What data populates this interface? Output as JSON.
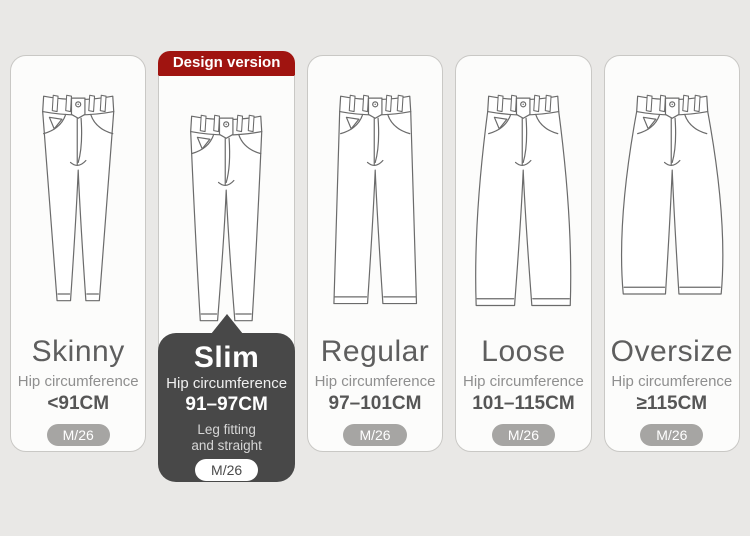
{
  "page": {
    "background": "#e9e8e6"
  },
  "colors": {
    "banner_red": "#a01410",
    "panel_gray": "#484848",
    "card_background": "#fcfcfb",
    "card_border": "#c9c8c5",
    "badge_gray": "#a6a5a3",
    "title_gray": "#5e5e5e"
  },
  "columns": [
    {
      "id": "skinny",
      "name": "Skinny",
      "hip_label": "Hip circumference",
      "hip_value": "<91CM",
      "size": "M/26"
    },
    {
      "id": "slim",
      "name": "Slim",
      "banner": "Design version",
      "hip_label": "Hip circumference",
      "hip_value": "91–97CM",
      "extra_line1": "Leg fitting",
      "extra_line2": "and straight",
      "size": "M/26"
    },
    {
      "id": "regular",
      "name": "Regular",
      "hip_label": "Hip circumference",
      "hip_value": "97–101CM",
      "size": "M/26"
    },
    {
      "id": "loose",
      "name": "Loose",
      "hip_label": "Hip circumference",
      "hip_value": "101–115CM",
      "size": "M/26"
    },
    {
      "id": "oversize",
      "name": "Oversize",
      "hip_label": "Hip circumference",
      "hip_value": "≥115CM",
      "size": "M/26"
    }
  ]
}
